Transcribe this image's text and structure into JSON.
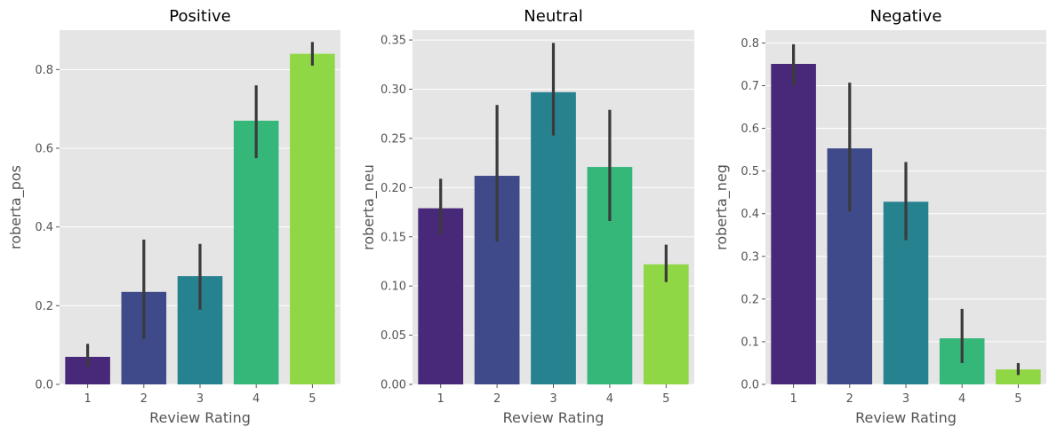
{
  "chart_data": [
    {
      "type": "bar",
      "title": "Positive",
      "xlabel": "Review Rating",
      "ylabel": "roberta_pos",
      "categories": [
        "1",
        "2",
        "3",
        "4",
        "5"
      ],
      "values": [
        0.07,
        0.235,
        0.275,
        0.67,
        0.84
      ],
      "error_low": [
        0.045,
        0.115,
        0.19,
        0.575,
        0.81
      ],
      "error_high": [
        0.103,
        0.368,
        0.357,
        0.76,
        0.87
      ],
      "ylim": [
        0,
        0.9
      ],
      "yticks": [
        0.0,
        0.2,
        0.4,
        0.6,
        0.8
      ],
      "ytick_labels": [
        "0.0",
        "0.2",
        "0.4",
        "0.6",
        "0.8"
      ],
      "colors": [
        "#482878",
        "#3e4a89",
        "#26828e",
        "#35b779",
        "#8fd744"
      ],
      "grid": true
    },
    {
      "type": "bar",
      "title": "Neutral",
      "xlabel": "Review Rating",
      "ylabel": "roberta_neu",
      "categories": [
        "1",
        "2",
        "3",
        "4",
        "5"
      ],
      "values": [
        0.179,
        0.212,
        0.297,
        0.221,
        0.122
      ],
      "error_low": [
        0.152,
        0.145,
        0.253,
        0.166,
        0.104
      ],
      "error_high": [
        0.209,
        0.284,
        0.347,
        0.279,
        0.142
      ],
      "ylim": [
        0,
        0.36
      ],
      "yticks": [
        0.0,
        0.05,
        0.1,
        0.15,
        0.2,
        0.25,
        0.3,
        0.35
      ],
      "ytick_labels": [
        "0.00",
        "0.05",
        "0.10",
        "0.15",
        "0.20",
        "0.25",
        "0.30",
        "0.35"
      ],
      "colors": [
        "#482878",
        "#3e4a89",
        "#26828e",
        "#35b779",
        "#8fd744"
      ],
      "grid": true
    },
    {
      "type": "bar",
      "title": "Negative",
      "xlabel": "Review Rating",
      "ylabel": "roberta_neg",
      "categories": [
        "1",
        "2",
        "3",
        "4",
        "5"
      ],
      "values": [
        0.751,
        0.553,
        0.428,
        0.108,
        0.035
      ],
      "error_low": [
        0.7,
        0.405,
        0.338,
        0.05,
        0.022
      ],
      "error_high": [
        0.797,
        0.707,
        0.521,
        0.177,
        0.05
      ],
      "ylim": [
        0,
        0.83
      ],
      "yticks": [
        0.0,
        0.1,
        0.2,
        0.3,
        0.4,
        0.5,
        0.6,
        0.7,
        0.8
      ],
      "ytick_labels": [
        "0.0",
        "0.1",
        "0.2",
        "0.3",
        "0.4",
        "0.5",
        "0.6",
        "0.7",
        "0.8"
      ],
      "colors": [
        "#482878",
        "#3e4a89",
        "#26828e",
        "#35b779",
        "#8fd744"
      ],
      "grid": true
    }
  ]
}
